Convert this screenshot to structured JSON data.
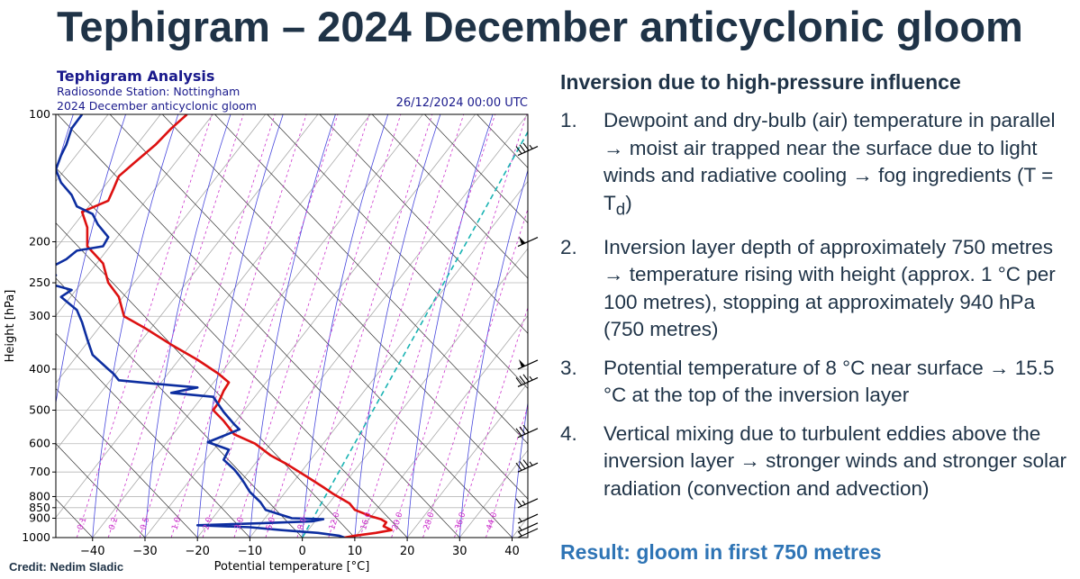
{
  "slide_title": "Tephigram – 2024 December anticyclonic gloom",
  "credit": "Credit: Nedim Sladic",
  "panel": {
    "heading": "Inversion due to high-pressure influence",
    "points": [
      {
        "num": "1.",
        "text": "Dewpoint and dry-bulb (air) temperature in parallel → moist air trapped near the surface due to light winds and radiative cooling → fog ingredients (T = T",
        "sub": "d",
        "tail": ")"
      },
      {
        "num": "2.",
        "text": "Inversion layer depth of approximately 750 metres → temperature rising with height (approx. 1 °C per 100 metres), stopping at approximately 940 hPa (750 metres)",
        "sub": "",
        "tail": ""
      },
      {
        "num": "3.",
        "text": "Potential temperature of 8 °C near surface → 15.5 °C at the top of the inversion layer",
        "sub": "",
        "tail": ""
      },
      {
        "num": "4.",
        "text": "Vertical mixing due to turbulent eddies above the inversion layer → stronger winds and stronger solar radiation (convection and advection)",
        "sub": "",
        "tail": ""
      }
    ],
    "result": "Result: gloom in first 750 metres"
  },
  "chart_data": {
    "type": "line",
    "title": "Tephigram Analysis",
    "subtitle_lines": [
      "Radiosonde Station: Nottingham",
      "2024 December anticyclonic gloom"
    ],
    "timestamp": "26/12/2024 00:00 UTC",
    "xlabel": "Potential temperature [°C]",
    "ylabel": "Height [hPa]",
    "x_range": [
      -47,
      43
    ],
    "y_range": [
      1000,
      100
    ],
    "x_ticks": [
      -40,
      -30,
      -20,
      -10,
      0,
      10,
      20,
      30,
      40
    ],
    "y_ticks": [
      100,
      200,
      250,
      300,
      400,
      500,
      600,
      700,
      800,
      850,
      900,
      1000
    ],
    "isotherm_step": 10,
    "dry_adiabat_step": 10,
    "saturated_adiabat_step": 10,
    "mixing_ratio_lines": [
      {
        "label": "0.1",
        "value": 0.1
      },
      {
        "label": "0.2",
        "value": 0.2
      },
      {
        "label": "0.5",
        "value": 0.5
      },
      {
        "label": "1.0",
        "value": 1.0
      },
      {
        "label": "2.0",
        "value": 2.0
      },
      {
        "label": "3.0",
        "value": 3.0
      },
      {
        "label": "5.0",
        "value": 5.0
      },
      {
        "label": "8.0",
        "value": 8.0
      },
      {
        "label": "12.0",
        "value": 12.0
      },
      {
        "label": "16.0",
        "value": 16.0
      },
      {
        "label": "20.0",
        "value": 20.0
      },
      {
        "label": "28.0",
        "value": 28.0
      },
      {
        "label": "36.0",
        "value": 36.0
      },
      {
        "label": "44.0",
        "value": 44.0
      }
    ],
    "parcel_line": {
      "style": "dashed",
      "start_theta": 0,
      "start_pressure": 1000,
      "end_theta": 43,
      "end_pressure": 110
    },
    "series": [
      {
        "name": "",
        "color": "#dd1111",
        "points": [
          [
            8,
            1000
          ],
          [
            10,
            990
          ],
          [
            14,
            975
          ],
          [
            17,
            960
          ],
          [
            15.5,
            940
          ],
          [
            16,
            920
          ],
          [
            15,
            905
          ],
          [
            13,
            890
          ],
          [
            10,
            860
          ],
          [
            9,
            830
          ],
          [
            6,
            790
          ],
          [
            4,
            760
          ],
          [
            1,
            720
          ],
          [
            -3,
            670
          ],
          [
            -6,
            640
          ],
          [
            -9,
            600
          ],
          [
            -13,
            570
          ],
          [
            -15,
            530
          ],
          [
            -17,
            500
          ],
          [
            -16,
            480
          ],
          [
            -15,
            450
          ],
          [
            -14,
            430
          ],
          [
            -16,
            410
          ],
          [
            -20,
            380
          ],
          [
            -25,
            350
          ],
          [
            -30,
            320
          ],
          [
            -34,
            300
          ],
          [
            -35,
            270
          ],
          [
            -37,
            250
          ],
          [
            -38,
            225
          ],
          [
            -41,
            205
          ],
          [
            -41,
            185
          ],
          [
            -42,
            170
          ],
          [
            -37,
            160
          ],
          [
            -36,
            150
          ],
          [
            -35,
            140
          ],
          [
            -32,
            130
          ],
          [
            -28,
            118
          ],
          [
            -25,
            108
          ],
          [
            -22,
            100
          ]
        ]
      },
      {
        "name": "",
        "color": "#0d2ea0",
        "points": [
          [
            8,
            1000
          ],
          [
            7,
            990
          ],
          [
            3,
            975
          ],
          [
            -4,
            960
          ],
          [
            -10,
            945
          ],
          [
            -20,
            935
          ],
          [
            -8,
            925
          ],
          [
            2,
            915
          ],
          [
            4,
            905
          ],
          [
            -2,
            900
          ],
          [
            -7,
            860
          ],
          [
            -8,
            825
          ],
          [
            -10,
            780
          ],
          [
            -11,
            745
          ],
          [
            -12,
            715
          ],
          [
            -13,
            690
          ],
          [
            -15,
            655
          ],
          [
            -14,
            620
          ],
          [
            -18,
            595
          ],
          [
            -15,
            575
          ],
          [
            -12,
            555
          ],
          [
            -13,
            540
          ],
          [
            -15,
            505
          ],
          [
            -17,
            465
          ],
          [
            -25,
            455
          ],
          [
            -20,
            442
          ],
          [
            -29,
            432
          ],
          [
            -35,
            425
          ],
          [
            -36,
            410
          ],
          [
            -37,
            400
          ],
          [
            -40,
            370
          ],
          [
            -41,
            340
          ],
          [
            -42,
            310
          ],
          [
            -43,
            290
          ],
          [
            -46,
            270
          ],
          [
            -44,
            260
          ],
          [
            -49,
            250
          ],
          [
            -47,
            240
          ],
          [
            -48,
            230
          ],
          [
            -45,
            220
          ],
          [
            -43,
            210
          ],
          [
            -38,
            205
          ],
          [
            -37,
            195
          ],
          [
            -39,
            182
          ],
          [
            -40,
            172
          ],
          [
            -43,
            165
          ],
          [
            -44,
            155
          ],
          [
            -46,
            145
          ],
          [
            -47,
            135
          ],
          [
            -46,
            125
          ],
          [
            -45,
            118
          ],
          [
            -44,
            108
          ],
          [
            -42,
            100
          ]
        ]
      }
    ],
    "wind_barbs": [
      {
        "pressure": 125,
        "speed_kt": 35
      },
      {
        "pressure": 205,
        "speed_kt": 50
      },
      {
        "pressure": 400,
        "speed_kt": 50
      },
      {
        "pressure": 440,
        "speed_kt": 35
      },
      {
        "pressure": 580,
        "speed_kt": 30
      },
      {
        "pressure": 700,
        "speed_kt": 35
      },
      {
        "pressure": 850,
        "speed_kt": 15
      },
      {
        "pressure": 925,
        "speed_kt": 5
      },
      {
        "pressure": 970,
        "speed_kt": 5
      },
      {
        "pressure": 1000,
        "speed_kt": 5
      }
    ]
  }
}
